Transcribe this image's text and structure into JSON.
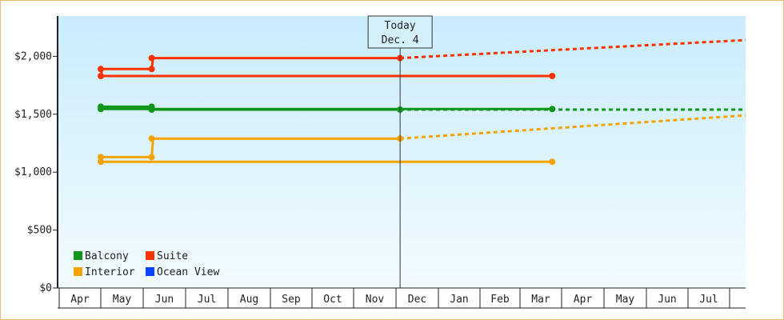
{
  "chart_data": {
    "type": "line",
    "title": "",
    "xlabel": "",
    "ylabel": "",
    "ylim": [
      0,
      2350
    ],
    "y_ticks": [
      {
        "value": 0,
        "label": "$0"
      },
      {
        "value": 500,
        "label": "$500"
      },
      {
        "value": 1000,
        "label": "$1,000"
      },
      {
        "value": 1500,
        "label": "$1,500"
      },
      {
        "value": 2000,
        "label": "$2,000"
      }
    ],
    "months": [
      "Apr",
      "May",
      "Jun",
      "Jul",
      "Aug",
      "Sep",
      "Oct",
      "Nov",
      "Dec",
      "Jan",
      "Feb",
      "Mar",
      "Apr",
      "May",
      "Jun",
      "Jul"
    ],
    "x_range": [
      "Mar 25",
      "Aug 31 (next year)"
    ],
    "today_marker": {
      "line1": "Today",
      "line2": "Dec. 4",
      "date": "Dec 4"
    },
    "series": [
      {
        "name": "Balcony",
        "color": "#109618",
        "history": [
          [
            "Mar 25",
            1545
          ],
          [
            "May 1",
            1545
          ],
          [
            "May 2",
            1565
          ],
          [
            "Jun 7",
            1565
          ],
          [
            "Jun 8",
            1540
          ],
          [
            "Dec 4",
            1540
          ]
        ],
        "history_markers": [
          [
            "Mar 25",
            1545
          ],
          [
            "May 1",
            1545
          ],
          [
            "May 1",
            1565
          ],
          [
            "Jun 7",
            1565
          ],
          [
            "Jun 7",
            1540
          ],
          [
            "Dec 4",
            1540
          ]
        ],
        "forecast": [
          [
            "Dec 4",
            1540
          ],
          [
            "Aug 31",
            1540
          ]
        ]
      },
      {
        "name": "Suite",
        "color": "#ff3300",
        "history": [
          [
            "Mar 25",
            1830
          ],
          [
            "May 1",
            1830
          ],
          [
            "May 2",
            1890
          ],
          [
            "Jun 7",
            1890
          ],
          [
            "Jun 8",
            1985
          ],
          [
            "Dec 4",
            1985
          ]
        ],
        "history_markers": [
          [
            "Mar 25",
            1830
          ],
          [
            "May 1",
            1830
          ],
          [
            "May 1",
            1890
          ],
          [
            "Jun 7",
            1890
          ],
          [
            "Jun 7",
            1985
          ],
          [
            "Dec 4",
            1985
          ]
        ],
        "forecast": [
          [
            "Dec 4",
            1985
          ],
          [
            "Aug 31",
            2140
          ]
        ]
      },
      {
        "name": "Interior",
        "color": "#f5a300",
        "history": [
          [
            "Mar 25",
            1090
          ],
          [
            "May 1",
            1090
          ],
          [
            "May 2",
            1130
          ],
          [
            "Jun 7",
            1130
          ],
          [
            "Jun 8",
            1290
          ],
          [
            "Dec 4",
            1290
          ]
        ],
        "history_markers": [
          [
            "Mar 25",
            1090
          ],
          [
            "May 1",
            1090
          ],
          [
            "May 1",
            1130
          ],
          [
            "Jun 7",
            1130
          ],
          [
            "Jun 7",
            1290
          ],
          [
            "Dec 4",
            1290
          ]
        ],
        "forecast": [
          [
            "Dec 4",
            1290
          ],
          [
            "Aug 31",
            1490
          ]
        ]
      },
      {
        "name": "Ocean View",
        "color": "#0a44ff",
        "history": [],
        "history_markers": [],
        "forecast": []
      }
    ],
    "grid": false,
    "legend_position": "bottom-left"
  }
}
